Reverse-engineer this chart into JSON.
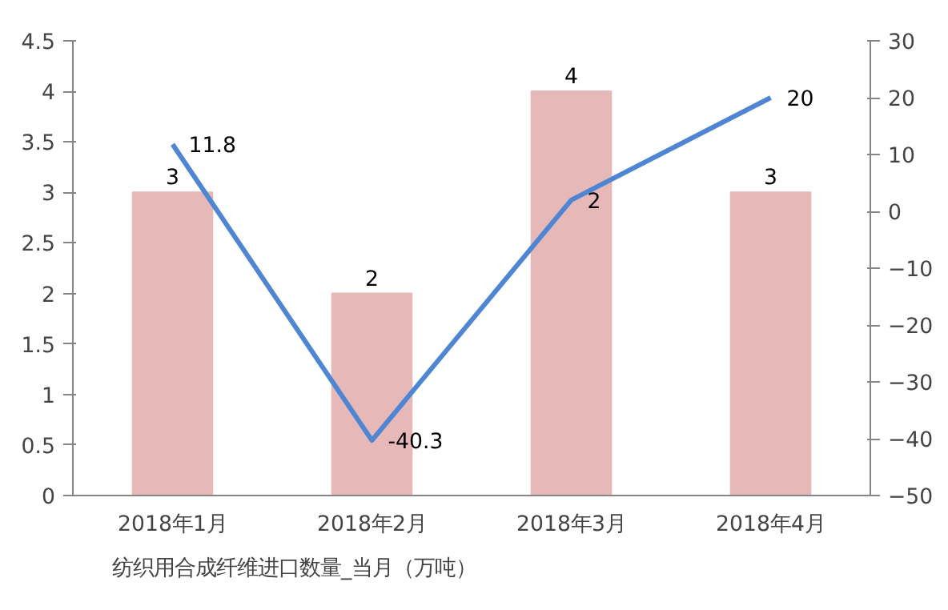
{
  "chart_data": {
    "type": "bar",
    "categories": [
      "2018年1月",
      "2018年2月",
      "2018年3月",
      "2018年4月"
    ],
    "series": [
      {
        "name": "纺织用合成纤维进口数量_当月（万吨）",
        "color": "#e6b8b7",
        "values": [
          3,
          2,
          4,
          3
        ]
      },
      {
        "type": "line",
        "axis": "y2",
        "color": "#4f86d4",
        "values": [
          11.8,
          -40.3,
          2,
          20
        ]
      }
    ],
    "ylim": [
      0,
      4.5
    ],
    "yticks": [
      0,
      0.5,
      1,
      1.5,
      2,
      2.5,
      3,
      3.5,
      4,
      4.5
    ],
    "y2lim": [
      -50,
      30
    ],
    "y2ticks": [
      -50,
      -40,
      -30,
      -20,
      -10,
      0,
      10,
      20,
      30
    ],
    "data_labels": true,
    "legend": "bottom",
    "grid": false,
    "marker": "none",
    "line_style": "solid"
  }
}
